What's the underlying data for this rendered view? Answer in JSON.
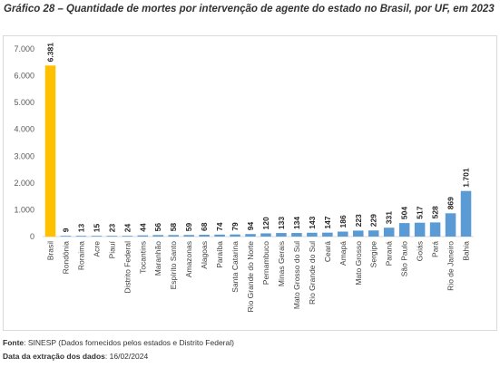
{
  "title": "Gráfico 28 – Quantidade de mortes por intervenção de agente do estado no Brasil, por UF, em 2023",
  "footer": {
    "source_label": "Fonte",
    "source_text": ": SINESP (Dados fornecidos pelos estados e Distrito Federal)",
    "date_label": "Data da extração dos dados",
    "date_text": ": 16/02/2024"
  },
  "colors": {
    "highlight": "#FFC000",
    "bar": "#5B9BD5",
    "grid": "#d9d9d9"
  },
  "chart_data": {
    "type": "bar",
    "categories": [
      "Brasil",
      "Rondônia",
      "Roraima",
      "Acre",
      "Piauí",
      "Distrito Federal",
      "Tocantins",
      "Maranhão",
      "Espírito Santo",
      "Amazonas",
      "Alagoas",
      "Paraíba",
      "Santa Catarina",
      "Rio Grande do Norte",
      "Pernambuco",
      "Minas Gerais",
      "Mato Grosso do Sul",
      "Rio Grande do Sul",
      "Ceará",
      "Amapá",
      "Mato Grosso",
      "Sergipe",
      "Paraná",
      "São Paulo",
      "Goiás",
      "Pará",
      "Rio de Janeiro",
      "Bahia"
    ],
    "values": [
      6381,
      9,
      13,
      15,
      23,
      24,
      44,
      56,
      58,
      59,
      68,
      74,
      79,
      94,
      120,
      133,
      134,
      143,
      147,
      186,
      223,
      229,
      331,
      504,
      517,
      528,
      869,
      1701
    ],
    "value_labels": [
      "6.381",
      "9",
      "13",
      "15",
      "23",
      "24",
      "44",
      "56",
      "58",
      "59",
      "68",
      "74",
      "79",
      "94",
      "120",
      "133",
      "134",
      "143",
      "147",
      "186",
      "223",
      "229",
      "331",
      "504",
      "517",
      "528",
      "869",
      "1.701"
    ],
    "highlight_index": 0,
    "ylim": [
      0,
      7000
    ],
    "yticks": [
      0,
      1000,
      2000,
      3000,
      4000,
      5000,
      6000,
      7000
    ],
    "ytick_labels": [
      "0",
      "1.000",
      "2.000",
      "3.000",
      "4.000",
      "5.000",
      "6.000",
      "7.000"
    ],
    "grid": false,
    "legend": "none"
  }
}
